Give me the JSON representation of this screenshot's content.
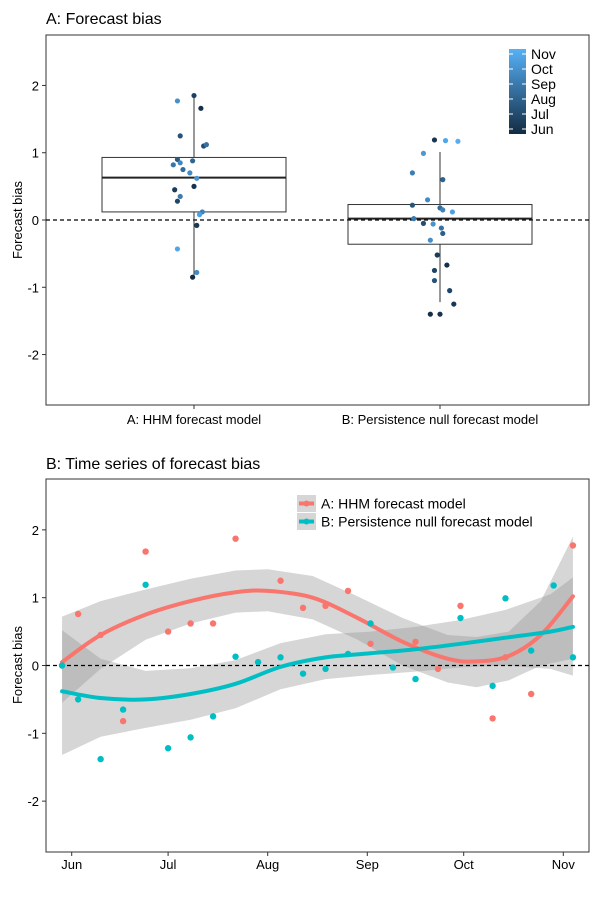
{
  "colors": {
    "hhm": "#f8766d",
    "persistence": "#00bfc4",
    "ribbon": "#999999",
    "month_scale": [
      "#132b43",
      "#1f4666",
      "#2c618a",
      "#3a7eb0",
      "#4a9bd6",
      "#56b1f7"
    ]
  },
  "chart_data": [
    {
      "type": "box",
      "title": "A: Forecast bias",
      "xlabel": "",
      "ylabel": "Forecast bias",
      "ylim": [
        -2.75,
        2.75
      ],
      "yticks": [
        "-2",
        "-1",
        "0",
        "1",
        "2"
      ],
      "categories": [
        "A: HHM forecast model",
        "B: Persistence null forecast model"
      ],
      "reference_line": 0,
      "grid": false,
      "legend": {
        "placement": "top-right",
        "labels": [
          "Nov",
          "Oct",
          "Sep",
          "Aug",
          "Jul",
          "Jun"
        ]
      },
      "boxes": [
        {
          "category": "A: HHM forecast model",
          "q1": 0.12,
          "median": 0.63,
          "q3": 0.93,
          "whisker_low": -0.83,
          "whisker_high": 1.87
        },
        {
          "category": "B: Persistence null forecast model",
          "q1": -0.36,
          "median": 0.02,
          "q3": 0.23,
          "whisker_low": -1.22,
          "whisker_high": 1.01
        }
      ],
      "points": [
        {
          "category": "A: HHM forecast model",
          "offset": 0.0,
          "value": 1.85,
          "month": 6.8
        },
        {
          "category": "A: HHM forecast model",
          "offset": -0.12,
          "value": 1.77,
          "month": 9.8
        },
        {
          "category": "A: HHM forecast model",
          "offset": 0.05,
          "value": 1.66,
          "month": 6.2
        },
        {
          "category": "A: HHM forecast model",
          "offset": -0.1,
          "value": 1.25,
          "month": 7.5
        },
        {
          "category": "A: HHM forecast model",
          "offset": 0.07,
          "value": 1.1,
          "month": 7.2
        },
        {
          "category": "A: HHM forecast model",
          "offset": 0.09,
          "value": 1.12,
          "month": 8.6
        },
        {
          "category": "A: HHM forecast model",
          "offset": -0.12,
          "value": 0.9,
          "month": 7.7
        },
        {
          "category": "A: HHM forecast model",
          "offset": -0.1,
          "value": 0.85,
          "month": 9.5
        },
        {
          "category": "A: HHM forecast model",
          "offset": -0.01,
          "value": 0.88,
          "month": 8.2
        },
        {
          "category": "A: HHM forecast model",
          "offset": -0.15,
          "value": 0.82,
          "month": 8.8
        },
        {
          "category": "A: HHM forecast model",
          "offset": -0.08,
          "value": 0.75,
          "month": 8.4
        },
        {
          "category": "A: HHM forecast model",
          "offset": -0.03,
          "value": 0.7,
          "month": 9.6
        },
        {
          "category": "A: HHM forecast model",
          "offset": 0.02,
          "value": 0.62,
          "month": 10.0
        },
        {
          "category": "A: HHM forecast model",
          "offset": 0.0,
          "value": 0.5,
          "month": 6.3
        },
        {
          "category": "A: HHM forecast model",
          "offset": -0.14,
          "value": 0.45,
          "month": 6.6
        },
        {
          "category": "A: HHM forecast model",
          "offset": -0.1,
          "value": 0.35,
          "month": 9.0
        },
        {
          "category": "A: HHM forecast model",
          "offset": -0.12,
          "value": 0.28,
          "month": 7.0
        },
        {
          "category": "A: HHM forecast model",
          "offset": 0.06,
          "value": 0.12,
          "month": 9.2
        },
        {
          "category": "A: HHM forecast model",
          "offset": 0.04,
          "value": 0.08,
          "month": 10.4
        },
        {
          "category": "A: HHM forecast model",
          "offset": 0.02,
          "value": -0.08,
          "month": 6.5
        },
        {
          "category": "A: HHM forecast model",
          "offset": -0.12,
          "value": -0.43,
          "month": 10.6
        },
        {
          "category": "A: HHM forecast model",
          "offset": 0.02,
          "value": -0.78,
          "month": 9.6
        },
        {
          "category": "A: HHM forecast model",
          "offset": -0.01,
          "value": -0.85,
          "month": 6.0
        },
        {
          "category": "B: Persistence null forecast model",
          "offset": -0.04,
          "value": 1.19,
          "month": 6.4
        },
        {
          "category": "B: Persistence null forecast model",
          "offset": 0.04,
          "value": 1.18,
          "month": 10.6
        },
        {
          "category": "B: Persistence null forecast model",
          "offset": 0.13,
          "value": 1.17,
          "month": 10.9
        },
        {
          "category": "B: Persistence null forecast model",
          "offset": -0.12,
          "value": 0.99,
          "month": 10.1
        },
        {
          "category": "B: Persistence null forecast model",
          "offset": -0.2,
          "value": 0.7,
          "month": 9.1
        },
        {
          "category": "B: Persistence null forecast model",
          "offset": 0.02,
          "value": 0.6,
          "month": 8.1
        },
        {
          "category": "B: Persistence null forecast model",
          "offset": -0.09,
          "value": 0.3,
          "month": 9.6
        },
        {
          "category": "B: Persistence null forecast model",
          "offset": -0.2,
          "value": 0.22,
          "month": 7.6
        },
        {
          "category": "B: Persistence null forecast model",
          "offset": 0.0,
          "value": 0.18,
          "month": 8.4
        },
        {
          "category": "B: Persistence null forecast model",
          "offset": 0.02,
          "value": 0.15,
          "month": 9.3
        },
        {
          "category": "B: Persistence null forecast model",
          "offset": 0.09,
          "value": 0.12,
          "month": 10.4
        },
        {
          "category": "B: Persistence null forecast model",
          "offset": -0.19,
          "value": 0.02,
          "month": 8.9
        },
        {
          "category": "B: Persistence null forecast model",
          "offset": -0.12,
          "value": -0.05,
          "month": 7.3
        },
        {
          "category": "B: Persistence null forecast model",
          "offset": -0.05,
          "value": -0.06,
          "month": 9.9
        },
        {
          "category": "B: Persistence null forecast model",
          "offset": 0.01,
          "value": -0.12,
          "month": 8.6
        },
        {
          "category": "B: Persistence null forecast model",
          "offset": 0.02,
          "value": -0.2,
          "month": 7.9
        },
        {
          "category": "B: Persistence null forecast model",
          "offset": -0.07,
          "value": -0.3,
          "month": 9.7
        },
        {
          "category": "B: Persistence null forecast model",
          "offset": -0.02,
          "value": -0.52,
          "month": 6.6
        },
        {
          "category": "B: Persistence null forecast model",
          "offset": 0.05,
          "value": -0.67,
          "month": 6.2
        },
        {
          "category": "B: Persistence null forecast model",
          "offset": -0.04,
          "value": -0.75,
          "month": 6.9
        },
        {
          "category": "B: Persistence null forecast model",
          "offset": -0.04,
          "value": -0.9,
          "month": 7.5
        },
        {
          "category": "B: Persistence null forecast model",
          "offset": 0.07,
          "value": -1.05,
          "month": 7.0
        },
        {
          "category": "B: Persistence null forecast model",
          "offset": 0.1,
          "value": -1.25,
          "month": 6.5
        },
        {
          "category": "B: Persistence null forecast model",
          "offset": -0.07,
          "value": -1.4,
          "month": 6.1
        },
        {
          "category": "B: Persistence null forecast model",
          "offset": 0.0,
          "value": -1.4,
          "month": 6.3
        }
      ]
    },
    {
      "type": "scatter",
      "title": "B: Time series of forecast bias",
      "xlabel": "",
      "ylabel": "Forecast bias",
      "xlim": [
        "2015-05-24",
        "2015-11-09"
      ],
      "ylim": [
        -2.75,
        2.75
      ],
      "yticks": [
        "-2",
        "-1",
        "0",
        "1",
        "2"
      ],
      "x_ticks": [
        {
          "label": "Jun",
          "date": "2015-06-01"
        },
        {
          "label": "Jul",
          "date": "2015-07-01"
        },
        {
          "label": "Aug",
          "date": "2015-08-01"
        },
        {
          "label": "Sep",
          "date": "2015-09-01"
        },
        {
          "label": "Oct",
          "date": "2015-10-01"
        },
        {
          "label": "Nov",
          "date": "2015-11-01"
        }
      ],
      "reference_line": 0,
      "grid": false,
      "legend": {
        "placement": "top-right"
      },
      "series": [
        {
          "name": "A: HHM forecast model",
          "color": "#f8766d",
          "points": [
            {
              "x": "2015-05-29",
              "y": 0.0
            },
            {
              "x": "2015-06-03",
              "y": 0.76
            },
            {
              "x": "2015-06-10",
              "y": 0.45
            },
            {
              "x": "2015-06-17",
              "y": -0.82
            },
            {
              "x": "2015-06-24",
              "y": 1.68
            },
            {
              "x": "2015-07-01",
              "y": 0.5
            },
            {
              "x": "2015-07-08",
              "y": 0.62
            },
            {
              "x": "2015-07-15",
              "y": 0.62
            },
            {
              "x": "2015-07-22",
              "y": 1.87
            },
            {
              "x": "2015-08-05",
              "y": 1.25
            },
            {
              "x": "2015-08-12",
              "y": 0.85
            },
            {
              "x": "2015-08-19",
              "y": 0.88
            },
            {
              "x": "2015-08-26",
              "y": 1.1
            },
            {
              "x": "2015-09-02",
              "y": 0.32
            },
            {
              "x": "2015-09-16",
              "y": 0.35
            },
            {
              "x": "2015-09-23",
              "y": -0.05
            },
            {
              "x": "2015-09-30",
              "y": 0.88
            },
            {
              "x": "2015-10-10",
              "y": -0.78
            },
            {
              "x": "2015-10-14",
              "y": 0.12
            },
            {
              "x": "2015-10-22",
              "y": -0.42
            },
            {
              "x": "2015-11-04",
              "y": 1.77
            }
          ],
          "smooth": [
            {
              "x": "2015-05-29",
              "y": 0.05
            },
            {
              "x": "2015-06-10",
              "y": 0.45
            },
            {
              "x": "2015-06-24",
              "y": 0.75
            },
            {
              "x": "2015-07-08",
              "y": 0.95
            },
            {
              "x": "2015-07-22",
              "y": 1.08
            },
            {
              "x": "2015-08-01",
              "y": 1.1
            },
            {
              "x": "2015-08-15",
              "y": 1.0
            },
            {
              "x": "2015-08-29",
              "y": 0.7
            },
            {
              "x": "2015-09-12",
              "y": 0.35
            },
            {
              "x": "2015-09-26",
              "y": 0.1
            },
            {
              "x": "2015-10-05",
              "y": 0.06
            },
            {
              "x": "2015-10-15",
              "y": 0.14
            },
            {
              "x": "2015-10-25",
              "y": 0.45
            },
            {
              "x": "2015-11-04",
              "y": 1.02
            }
          ],
          "band": [
            {
              "x": "2015-05-29",
              "lo": -0.55,
              "hi": 0.72
            },
            {
              "x": "2015-06-10",
              "lo": -0.05,
              "hi": 0.95
            },
            {
              "x": "2015-06-24",
              "lo": 0.38,
              "hi": 1.12
            },
            {
              "x": "2015-07-08",
              "lo": 0.62,
              "hi": 1.28
            },
            {
              "x": "2015-07-22",
              "lo": 0.78,
              "hi": 1.4
            },
            {
              "x": "2015-08-01",
              "lo": 0.8,
              "hi": 1.42
            },
            {
              "x": "2015-08-15",
              "lo": 0.68,
              "hi": 1.32
            },
            {
              "x": "2015-08-29",
              "lo": 0.38,
              "hi": 1.02
            },
            {
              "x": "2015-09-12",
              "lo": 0.0,
              "hi": 0.7
            },
            {
              "x": "2015-09-26",
              "lo": -0.25,
              "hi": 0.45
            },
            {
              "x": "2015-10-05",
              "lo": -0.32,
              "hi": 0.42
            },
            {
              "x": "2015-10-15",
              "lo": -0.22,
              "hi": 0.5
            },
            {
              "x": "2015-10-25",
              "lo": 0.0,
              "hi": 0.95
            },
            {
              "x": "2015-11-04",
              "lo": 0.1,
              "hi": 1.9
            }
          ]
        },
        {
          "name": "B: Persistence null forecast model",
          "color": "#00bfc4",
          "points": [
            {
              "x": "2015-05-29",
              "y": 0.0
            },
            {
              "x": "2015-06-03",
              "y": -0.5
            },
            {
              "x": "2015-06-10",
              "y": -1.38
            },
            {
              "x": "2015-06-17",
              "y": -0.65
            },
            {
              "x": "2015-06-24",
              "y": 1.19
            },
            {
              "x": "2015-07-01",
              "y": -1.22
            },
            {
              "x": "2015-07-08",
              "y": -1.06
            },
            {
              "x": "2015-07-15",
              "y": -0.75
            },
            {
              "x": "2015-07-22",
              "y": 0.13
            },
            {
              "x": "2015-07-29",
              "y": 0.05
            },
            {
              "x": "2015-08-05",
              "y": 0.12
            },
            {
              "x": "2015-08-12",
              "y": -0.12
            },
            {
              "x": "2015-08-19",
              "y": -0.05
            },
            {
              "x": "2015-08-26",
              "y": 0.17
            },
            {
              "x": "2015-09-02",
              "y": 0.62
            },
            {
              "x": "2015-09-09",
              "y": -0.03
            },
            {
              "x": "2015-09-16",
              "y": -0.2
            },
            {
              "x": "2015-09-30",
              "y": 0.7
            },
            {
              "x": "2015-10-10",
              "y": -0.3
            },
            {
              "x": "2015-10-14",
              "y": 0.99
            },
            {
              "x": "2015-10-22",
              "y": 0.22
            },
            {
              "x": "2015-10-29",
              "y": 1.18
            },
            {
              "x": "2015-11-04",
              "y": 0.12
            }
          ],
          "smooth": [
            {
              "x": "2015-05-29",
              "y": -0.38
            },
            {
              "x": "2015-06-10",
              "y": -0.48
            },
            {
              "x": "2015-06-24",
              "y": -0.5
            },
            {
              "x": "2015-07-08",
              "y": -0.42
            },
            {
              "x": "2015-07-22",
              "y": -0.27
            },
            {
              "x": "2015-08-05",
              "y": -0.02
            },
            {
              "x": "2015-08-19",
              "y": 0.12
            },
            {
              "x": "2015-09-02",
              "y": 0.18
            },
            {
              "x": "2015-09-16",
              "y": 0.24
            },
            {
              "x": "2015-09-30",
              "y": 0.32
            },
            {
              "x": "2015-10-14",
              "y": 0.41
            },
            {
              "x": "2015-10-28",
              "y": 0.5
            },
            {
              "x": "2015-11-04",
              "y": 0.57
            }
          ],
          "band": [
            {
              "x": "2015-05-29",
              "lo": -1.32,
              "hi": 0.52
            },
            {
              "x": "2015-06-10",
              "lo": -1.05,
              "hi": 0.1
            },
            {
              "x": "2015-06-24",
              "lo": -0.92,
              "hi": -0.08
            },
            {
              "x": "2015-07-08",
              "lo": -0.8,
              "hi": -0.04
            },
            {
              "x": "2015-07-22",
              "lo": -0.63,
              "hi": 0.08
            },
            {
              "x": "2015-08-05",
              "lo": -0.35,
              "hi": 0.33
            },
            {
              "x": "2015-08-19",
              "lo": -0.2,
              "hi": 0.46
            },
            {
              "x": "2015-09-02",
              "lo": -0.14,
              "hi": 0.5
            },
            {
              "x": "2015-09-16",
              "lo": -0.09,
              "hi": 0.57
            },
            {
              "x": "2015-09-30",
              "lo": -0.03,
              "hi": 0.67
            },
            {
              "x": "2015-10-14",
              "lo": 0.0,
              "hi": 0.82
            },
            {
              "x": "2015-10-28",
              "lo": -0.05,
              "hi": 1.05
            },
            {
              "x": "2015-11-04",
              "lo": -0.15,
              "hi": 1.3
            }
          ]
        }
      ]
    }
  ]
}
